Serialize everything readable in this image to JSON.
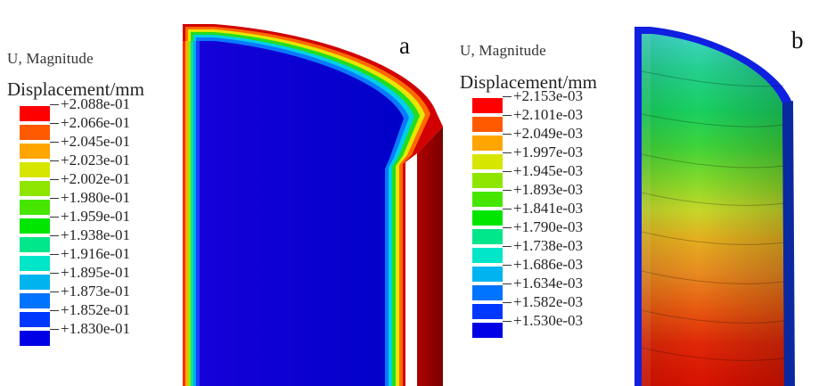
{
  "panels": [
    {
      "letter": "a",
      "legend_title": "U, Magnitude",
      "legend_unit": "Displacement/mm",
      "legend_values": [
        "+2.088e-01",
        "+2.066e-01",
        "+2.045e-01",
        "+2.023e-01",
        "+2.002e-01",
        "+1.980e-01",
        "+1.959e-01",
        "+1.938e-01",
        "+1.916e-01",
        "+1.895e-01",
        "+1.873e-01",
        "+1.852e-01",
        "+1.830e-01"
      ]
    },
    {
      "letter": "b",
      "legend_title": "U, Magnitude",
      "legend_unit": "Displacement/mm",
      "legend_values": [
        "+2.153e-03",
        "+2.101e-03",
        "+2.049e-03",
        "+1.997e-03",
        "+1.945e-03",
        "+1.893e-03",
        "+1.841e-03",
        "+1.790e-03",
        "+1.738e-03",
        "+1.686e-03",
        "+1.634e-03",
        "+1.582e-03",
        "+1.530e-03"
      ]
    }
  ],
  "colormap": [
    "#ff0000",
    "#ff5a00",
    "#ffa500",
    "#d7e600",
    "#8ee600",
    "#46e600",
    "#00e600",
    "#00e68a",
    "#00e6c8",
    "#00b4f0",
    "#0073ff",
    "#0037ff",
    "#0000e6"
  ]
}
